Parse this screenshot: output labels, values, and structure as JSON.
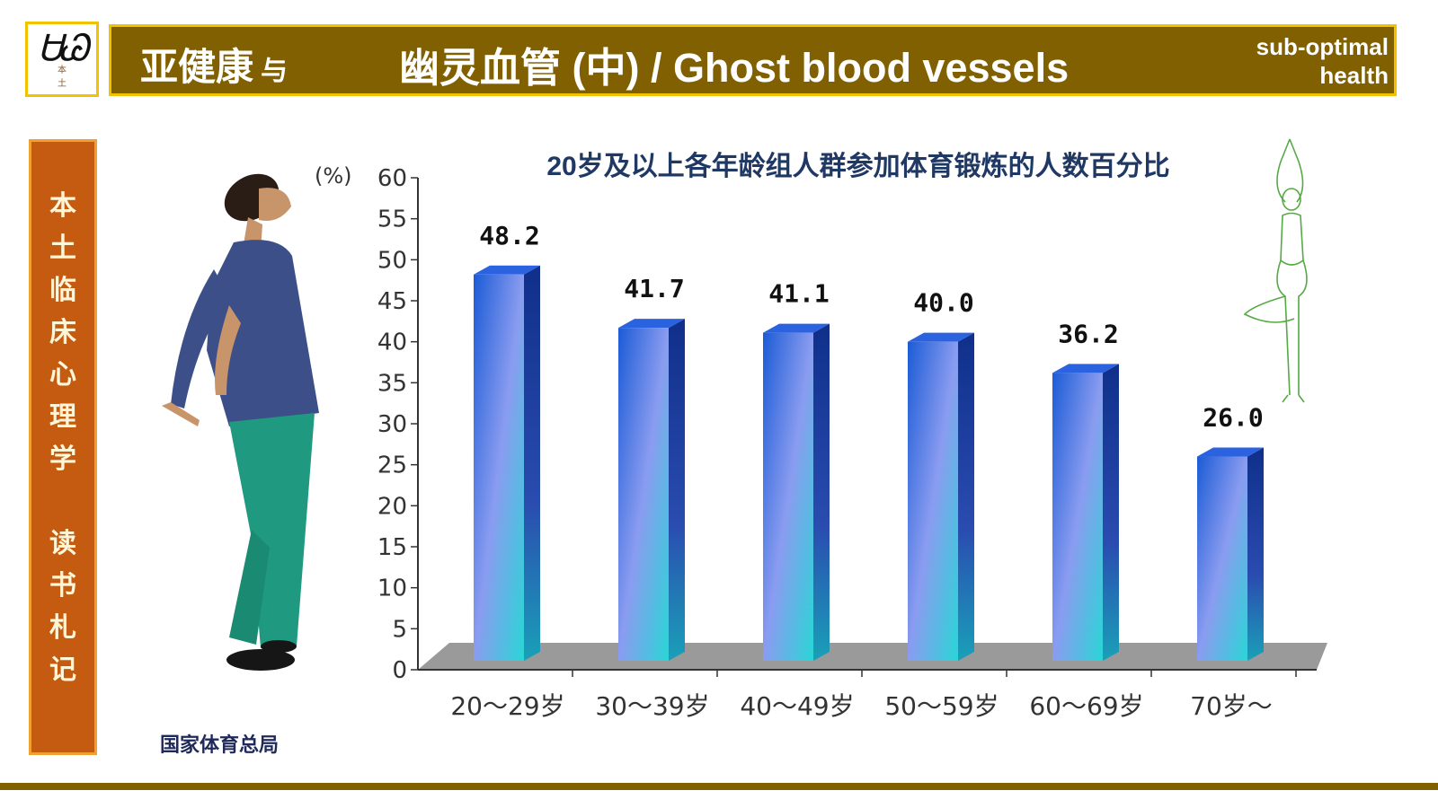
{
  "header": {
    "logo_sub": "本 土",
    "title_left": "亚健康",
    "title_connector": "与",
    "title_main": "幽灵血管 (中) / Ghost blood vessels",
    "title_right_line1": "sub-optimal",
    "title_right_line2": "health"
  },
  "side_banner": {
    "text": "本土临床心理学 读书札记"
  },
  "source": "国家体育总局",
  "colors": {
    "header_bg": "#806000",
    "header_border": "#f2c200",
    "banner_bg": "#c55a11",
    "title_color": "#1f3864",
    "bar_top": "#1b5bd6",
    "bar_mid": "#8a9cf0",
    "bar_bottom": "#28d6d6"
  },
  "chart_data": {
    "type": "bar",
    "title": "20岁及以上各年龄组人群参加体育锻炼的人数百分比",
    "ylabel": "(%)",
    "xlabel": "",
    "categories": [
      "20～29岁",
      "30～39岁",
      "40～49岁",
      "50～59岁",
      "60～69岁",
      "70岁～"
    ],
    "values": [
      48.2,
      41.7,
      41.1,
      40.0,
      36.2,
      26.0
    ],
    "value_labels": [
      "48.2",
      "41.7",
      "41.1",
      "40.0",
      "36.2",
      "26.0"
    ],
    "ylim": [
      0,
      60
    ],
    "yticks": [
      0,
      5,
      10,
      15,
      20,
      25,
      30,
      35,
      40,
      45,
      50,
      55,
      60
    ],
    "grid": false,
    "style": "3d"
  }
}
